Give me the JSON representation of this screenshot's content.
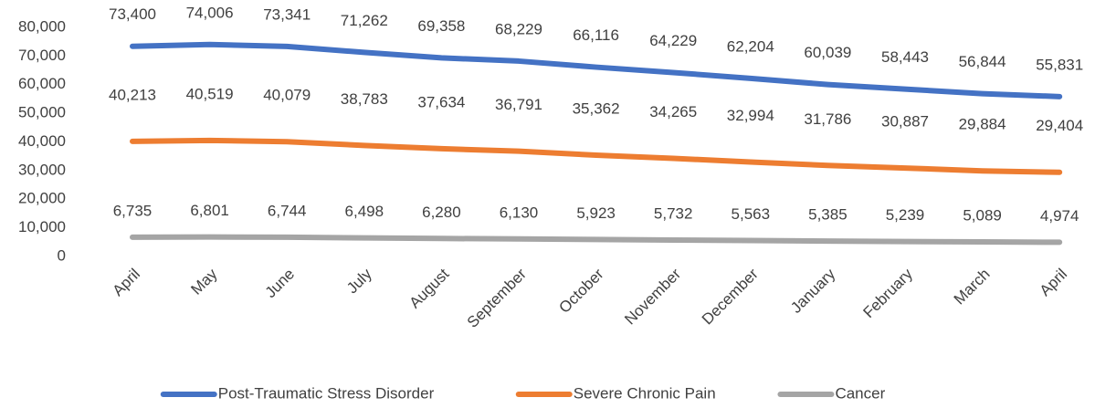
{
  "chart_data": {
    "type": "line",
    "categories": [
      "April",
      "May",
      "June",
      "July",
      "August",
      "September",
      "October",
      "November",
      "December",
      "January",
      "February",
      "March",
      "April"
    ],
    "series": [
      {
        "name": "Post-Traumatic Stress Disorder",
        "color": "#4472c4",
        "values": [
          73400,
          74006,
          73341,
          71262,
          69358,
          68229,
          66116,
          64229,
          62204,
          60039,
          58443,
          56844,
          55831
        ],
        "value_labels": [
          "73,400",
          "74,006",
          "73,341",
          "71,262",
          "69,358",
          "68,229",
          "66,116",
          "64,229",
          "62,204",
          "60,039",
          "58,443",
          "56,844",
          "55,831"
        ]
      },
      {
        "name": "Severe Chronic Pain",
        "color": "#ed7d31",
        "values": [
          40213,
          40519,
          40079,
          38783,
          37634,
          36791,
          35362,
          34265,
          32994,
          31786,
          30887,
          29884,
          29404
        ],
        "value_labels": [
          "40,213",
          "40,519",
          "40,079",
          "38,783",
          "37,634",
          "36,791",
          "35,362",
          "34,265",
          "32,994",
          "31,786",
          "30,887",
          "29,884",
          "29,404"
        ]
      },
      {
        "name": "Cancer",
        "color": "#a5a5a5",
        "values": [
          6735,
          6801,
          6744,
          6498,
          6280,
          6130,
          5923,
          5732,
          5563,
          5385,
          5239,
          5089,
          4974
        ],
        "value_labels": [
          "6,735",
          "6,801",
          "6,744",
          "6,498",
          "6,280",
          "6,130",
          "5,923",
          "5,732",
          "5,563",
          "5,385",
          "5,239",
          "5,089",
          "4,974"
        ]
      }
    ],
    "ylim": [
      0,
      80000
    ],
    "yticks": [
      0,
      {
        "value": 10000,
        "label": "10,000"
      },
      {
        "value": 20000,
        "label": "20,000"
      },
      {
        "value": 30000,
        "label": "30,000"
      },
      {
        "value": 40000,
        "label": "40,000"
      },
      {
        "value": 50000,
        "label": "50,000"
      },
      {
        "value": 60000,
        "label": "60,000"
      },
      {
        "value": 70000,
        "label": "70,000"
      },
      {
        "value": 80000,
        "label": "80,000"
      }
    ],
    "grid": false,
    "legend": "bottom"
  }
}
